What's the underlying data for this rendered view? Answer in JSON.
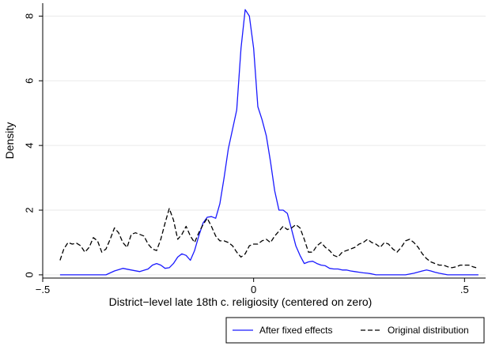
{
  "chart_data": {
    "type": "line",
    "xlabel": "District−level late 18th c. religiosity (centered on zero)",
    "ylabel": "Density",
    "xlim": [
      -0.5,
      0.55
    ],
    "ylim": [
      -0.1,
      8.4
    ],
    "x_ticks": [
      -0.5,
      0,
      0.5
    ],
    "x_tick_labels": [
      "−.5",
      "0",
      ".5"
    ],
    "y_ticks": [
      0,
      2,
      4,
      6,
      8
    ],
    "y_tick_labels": [
      "0",
      "2",
      "4",
      "6",
      "8"
    ],
    "grid": "horizontal",
    "legend_position": "bottom-right",
    "series": [
      {
        "name": "After fixed effects",
        "color": "#1a1aff",
        "style": "solid",
        "x": [
          -0.459,
          -0.4,
          -0.35,
          -0.33,
          -0.31,
          -0.29,
          -0.27,
          -0.25,
          -0.24,
          -0.23,
          -0.22,
          -0.21,
          -0.2,
          -0.19,
          -0.18,
          -0.17,
          -0.16,
          -0.15,
          -0.14,
          -0.13,
          -0.12,
          -0.11,
          -0.1,
          -0.09,
          -0.08,
          -0.07,
          -0.06,
          -0.05,
          -0.04,
          -0.03,
          -0.02,
          -0.01,
          0.0,
          0.01,
          0.02,
          0.03,
          0.04,
          0.05,
          0.06,
          0.07,
          0.08,
          0.09,
          0.1,
          0.11,
          0.12,
          0.13,
          0.14,
          0.15,
          0.16,
          0.17,
          0.18,
          0.19,
          0.2,
          0.21,
          0.22,
          0.23,
          0.24,
          0.25,
          0.26,
          0.27,
          0.28,
          0.29,
          0.3,
          0.33,
          0.36,
          0.38,
          0.4,
          0.41,
          0.42,
          0.43,
          0.44,
          0.46,
          0.5,
          0.533
        ],
        "y": [
          0.0,
          0.0,
          0.0,
          0.12,
          0.2,
          0.15,
          0.1,
          0.18,
          0.3,
          0.35,
          0.3,
          0.2,
          0.22,
          0.35,
          0.55,
          0.65,
          0.6,
          0.45,
          0.75,
          1.2,
          1.6,
          1.78,
          1.8,
          1.75,
          2.2,
          3.0,
          3.9,
          4.5,
          5.1,
          7.0,
          8.2,
          8.0,
          7.0,
          5.2,
          4.8,
          4.3,
          3.5,
          2.6,
          2.0,
          2.0,
          1.9,
          1.4,
          0.9,
          0.6,
          0.35,
          0.4,
          0.42,
          0.35,
          0.3,
          0.28,
          0.2,
          0.18,
          0.18,
          0.15,
          0.15,
          0.12,
          0.1,
          0.08,
          0.06,
          0.05,
          0.03,
          0.0,
          0.0,
          0.0,
          0.0,
          0.05,
          0.12,
          0.15,
          0.12,
          0.08,
          0.05,
          0.0,
          0.0,
          0.0
        ]
      },
      {
        "name": "Original distribution",
        "color": "#000000",
        "style": "dashed",
        "x": [
          -0.459,
          -0.45,
          -0.44,
          -0.43,
          -0.42,
          -0.41,
          -0.4,
          -0.39,
          -0.38,
          -0.37,
          -0.36,
          -0.35,
          -0.34,
          -0.33,
          -0.32,
          -0.31,
          -0.3,
          -0.29,
          -0.28,
          -0.27,
          -0.26,
          -0.25,
          -0.24,
          -0.23,
          -0.22,
          -0.21,
          -0.2,
          -0.19,
          -0.18,
          -0.17,
          -0.16,
          -0.15,
          -0.14,
          -0.13,
          -0.12,
          -0.11,
          -0.1,
          -0.09,
          -0.08,
          -0.07,
          -0.06,
          -0.05,
          -0.04,
          -0.03,
          -0.02,
          -0.01,
          0.0,
          0.01,
          0.02,
          0.03,
          0.04,
          0.05,
          0.06,
          0.07,
          0.08,
          0.09,
          0.1,
          0.11,
          0.12,
          0.13,
          0.14,
          0.15,
          0.16,
          0.17,
          0.18,
          0.19,
          0.2,
          0.21,
          0.22,
          0.23,
          0.24,
          0.25,
          0.26,
          0.27,
          0.28,
          0.29,
          0.3,
          0.31,
          0.32,
          0.33,
          0.34,
          0.35,
          0.36,
          0.37,
          0.38,
          0.39,
          0.4,
          0.41,
          0.42,
          0.43,
          0.44,
          0.45,
          0.46,
          0.47,
          0.48,
          0.49,
          0.5,
          0.51,
          0.52,
          0.533
        ],
        "y": [
          0.45,
          0.8,
          1.0,
          0.95,
          0.98,
          0.9,
          0.7,
          0.85,
          1.15,
          1.05,
          0.7,
          0.8,
          1.1,
          1.45,
          1.3,
          1.0,
          0.85,
          1.25,
          1.3,
          1.25,
          1.2,
          0.95,
          0.8,
          0.75,
          1.1,
          1.6,
          2.05,
          1.7,
          1.1,
          1.25,
          1.5,
          1.2,
          1.0,
          1.3,
          1.55,
          1.75,
          1.5,
          1.2,
          1.05,
          1.05,
          1.0,
          0.9,
          0.7,
          0.55,
          0.65,
          0.9,
          0.95,
          0.95,
          1.05,
          1.1,
          1.0,
          1.2,
          1.35,
          1.5,
          1.4,
          1.45,
          1.55,
          1.45,
          1.1,
          0.7,
          0.7,
          0.9,
          1.0,
          0.85,
          0.75,
          0.6,
          0.55,
          0.7,
          0.75,
          0.8,
          0.85,
          0.95,
          1.0,
          1.1,
          1.0,
          0.95,
          0.85,
          1.0,
          0.95,
          0.8,
          0.7,
          0.85,
          1.05,
          1.1,
          1.0,
          0.85,
          0.65,
          0.5,
          0.4,
          0.35,
          0.3,
          0.3,
          0.25,
          0.22,
          0.25,
          0.3,
          0.3,
          0.3,
          0.25,
          0.2
        ]
      }
    ]
  }
}
